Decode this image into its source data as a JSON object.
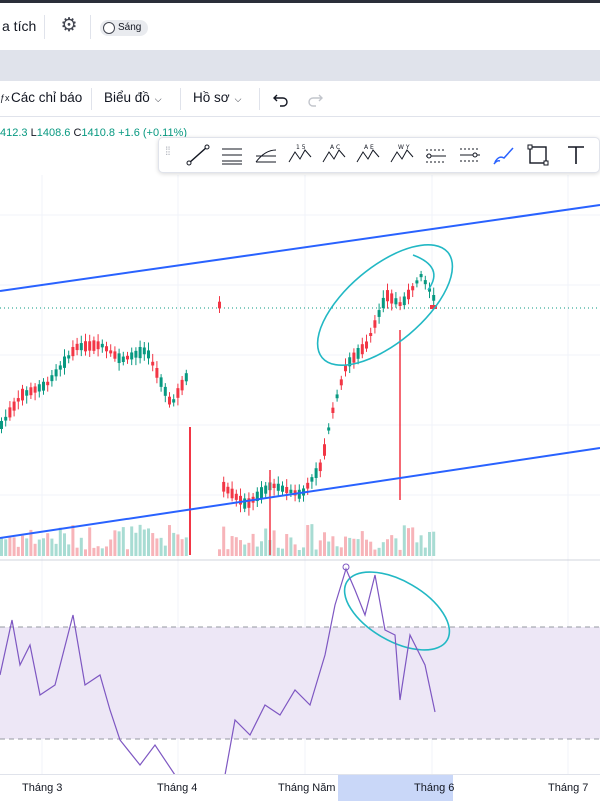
{
  "header": {
    "title": "a tích",
    "theme_toggle_label": "Sáng",
    "gear_icon": "gear-icon"
  },
  "toolbar": {
    "indicators_label": "Các chỉ báo",
    "chart_label": "Biểu đồ",
    "profile_label": "Hồ sơ",
    "undo_icon": "undo-icon",
    "redo_icon": "redo-icon"
  },
  "ohlc": {
    "h_value": "412.3",
    "l_label": "L",
    "l_value": "1408.6",
    "c_label": "C",
    "c_value": "1410.8",
    "change": "+1.6 (+0.11%)"
  },
  "drawing_tools": {
    "tools": [
      "trend-line-icon",
      "parallel-channel-icon",
      "pitchfork-icon",
      "xabcd-pattern-icon",
      "abcd-pattern-icon",
      "abcd-ae-pattern-icon",
      "wxy-pattern-icon",
      "fib-icon",
      "fib-extension-icon",
      "brush-icon",
      "rectangle-icon",
      "text-icon"
    ],
    "labels": {
      "elliott_15": "1 5",
      "abcd": "A C",
      "ae": "A E",
      "wy": "W Y"
    }
  },
  "colors": {
    "up": "#089981",
    "down": "#f23645",
    "trendline": "#2962ff",
    "annotation": "#22b8c4",
    "oscillator": "#7e57c2",
    "oscillator_band": "#ede7f6"
  },
  "time_axis": {
    "labels": [
      "Tháng 3",
      "Tháng 4",
      "Tháng Năm",
      "Tháng 6",
      "Tháng 7"
    ],
    "highlighted": "Tháng 6"
  }
}
